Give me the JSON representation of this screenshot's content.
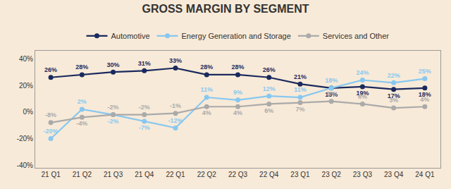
{
  "chart_data": {
    "type": "line",
    "title": "GROSS MARGIN BY SEGMENT",
    "categories": [
      "21 Q1",
      "21 Q2",
      "21 Q3",
      "21 Q4",
      "22 Q1",
      "22 Q2",
      "22 Q3",
      "22 Q4",
      "23 Q1",
      "23 Q2",
      "23 Q3",
      "23 Q4",
      "24 Q1"
    ],
    "series": [
      {
        "name": "Automotive",
        "color": "#1a2a5e",
        "values": [
          26,
          28,
          30,
          31,
          33,
          28,
          28,
          26,
          21,
          18,
          19,
          17,
          18
        ],
        "value_labels": [
          "26%",
          "28%",
          "30%",
          "31%",
          "33%",
          "28%",
          "28%",
          "26%",
          "21%",
          "18%",
          "19%",
          "17%",
          "18%"
        ]
      },
      {
        "name": "Energy Generation and Storage",
        "color": "#88c8f0",
        "values": [
          -20,
          2,
          -2,
          -7,
          -12,
          11,
          9,
          12,
          11,
          18,
          24,
          22,
          25
        ],
        "value_labels": [
          "-20%",
          "2%",
          "-2%",
          "-7%",
          "-12%",
          "11%",
          "9%",
          "12%",
          "11%",
          "18%",
          "24%",
          "22%",
          "25%"
        ]
      },
      {
        "name": "Services and Other",
        "color": "#aaaaaa",
        "values": [
          -8,
          -4,
          -2,
          -2,
          -1,
          4,
          4,
          6,
          7,
          8,
          6,
          3,
          4
        ],
        "value_labels": [
          "-8%",
          "-4%",
          "-2%",
          "-2%",
          "-1%",
          "4%",
          "4%",
          "6%",
          "7%",
          "8%",
          "6%",
          "3%",
          "4%"
        ]
      }
    ],
    "ylim": [
      -42,
      46
    ],
    "yticks": [
      {
        "value": -40,
        "label": "-40%"
      },
      {
        "value": -20,
        "label": "-20%"
      },
      {
        "value": 0,
        "label": "0%"
      },
      {
        "value": 20,
        "label": "20%"
      },
      {
        "value": 40,
        "label": "40%"
      }
    ],
    "grid": false,
    "legend": "upper center",
    "data_labels": true,
    "marker": "circle",
    "line_style": "solid"
  }
}
